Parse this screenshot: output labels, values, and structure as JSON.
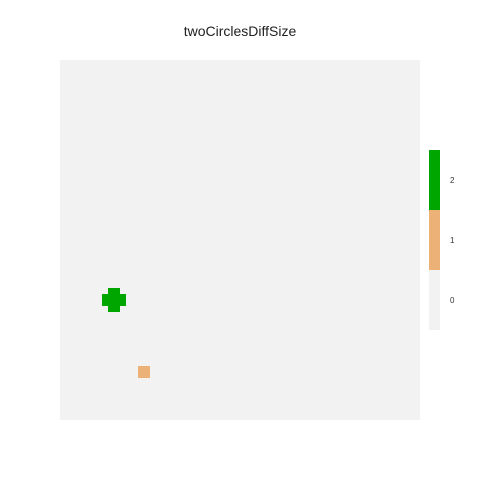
{
  "chart_data": {
    "type": "heatmap",
    "title": "twoCirclesDiffSize",
    "grid_size": [
      60,
      60
    ],
    "background_value": 0,
    "cells": [
      {
        "row": 38,
        "col": 8,
        "value": 2
      },
      {
        "row": 38,
        "col": 9,
        "value": 2
      },
      {
        "row": 39,
        "col": 7,
        "value": 2
      },
      {
        "row": 39,
        "col": 8,
        "value": 2
      },
      {
        "row": 39,
        "col": 9,
        "value": 2
      },
      {
        "row": 39,
        "col": 10,
        "value": 2
      },
      {
        "row": 40,
        "col": 7,
        "value": 2
      },
      {
        "row": 40,
        "col": 8,
        "value": 2
      },
      {
        "row": 40,
        "col": 9,
        "value": 2
      },
      {
        "row": 40,
        "col": 10,
        "value": 2
      },
      {
        "row": 41,
        "col": 8,
        "value": 2
      },
      {
        "row": 41,
        "col": 9,
        "value": 2
      },
      {
        "row": 51,
        "col": 13,
        "value": 1
      },
      {
        "row": 51,
        "col": 14,
        "value": 1
      },
      {
        "row": 52,
        "col": 13,
        "value": 1
      },
      {
        "row": 52,
        "col": 14,
        "value": 1
      }
    ],
    "legend": {
      "entries": [
        {
          "value": 2,
          "label": "2",
          "color": "#00A600"
        },
        {
          "value": 1,
          "label": "1",
          "color": "#ECB176"
        },
        {
          "value": 0,
          "label": "0",
          "color": "#F2F2F2"
        }
      ]
    },
    "colors": {
      "0": "#F2F2F2",
      "1": "#ECB176",
      "2": "#00A600"
    },
    "axes": "hidden",
    "grid": false,
    "legend_placement": "right"
  }
}
